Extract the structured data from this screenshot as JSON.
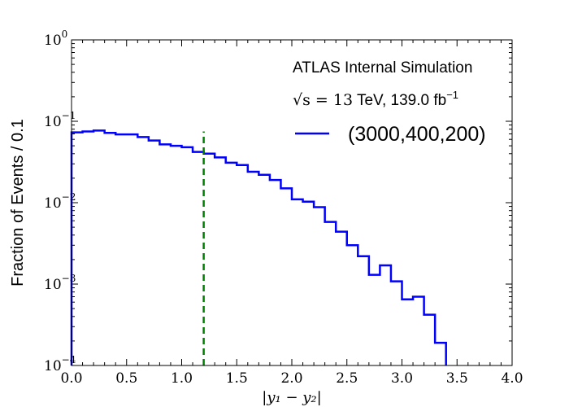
{
  "chart_data": {
    "type": "line",
    "xlabel": "|y₁ − y₂|",
    "ylabel": "Fraction of Events / 0.1",
    "xlim": [
      0.0,
      4.0
    ],
    "ylim": [
      0.0001,
      1.0
    ],
    "yscale": "log",
    "x_ticks": [
      "0.0",
      "0.5",
      "1.0",
      "1.5",
      "2.0",
      "2.5",
      "3.0",
      "3.5",
      "4.0"
    ],
    "y_ticks": [
      {
        "base": "10",
        "exp": "0"
      },
      {
        "base": "10",
        "exp": "−1"
      },
      {
        "base": "10",
        "exp": "−2"
      },
      {
        "base": "10",
        "exp": "−3"
      },
      {
        "base": "10",
        "exp": "−4"
      }
    ],
    "annotation": {
      "title": "ATLAS Internal Simulation",
      "energy_sqrt": "√s",
      "energy_eq": " = 13",
      "energy_rest": " TeV, 139.0 fb",
      "energy_sup": "−1"
    },
    "series": [
      {
        "name": "(3000,400,200)",
        "color": "#0000ff",
        "style": "step",
        "bin_edges": [
          0.0,
          0.1,
          0.2,
          0.3,
          0.4,
          0.5,
          0.6,
          0.7,
          0.8,
          0.9,
          1.0,
          1.1,
          1.2,
          1.3,
          1.4,
          1.5,
          1.6,
          1.7,
          1.8,
          1.9,
          2.0,
          2.1,
          2.2,
          2.3,
          2.4,
          2.5,
          2.6,
          2.7,
          2.8,
          2.9,
          3.0,
          3.1,
          3.2,
          3.3,
          3.4
        ],
        "values": [
          0.073,
          0.075,
          0.077,
          0.072,
          0.069,
          0.069,
          0.064,
          0.058,
          0.052,
          0.05,
          0.048,
          0.042,
          0.04,
          0.036,
          0.031,
          0.029,
          0.024,
          0.022,
          0.019,
          0.015,
          0.011,
          0.0103,
          0.0088,
          0.0058,
          0.0044,
          0.003,
          0.0022,
          0.0013,
          0.0017,
          0.00108,
          0.00065,
          0.0007,
          0.00042,
          0.00019
        ]
      }
    ],
    "vline": {
      "x": 1.2,
      "y_top": 0.075,
      "color": "#008000",
      "style": "dashed"
    }
  }
}
